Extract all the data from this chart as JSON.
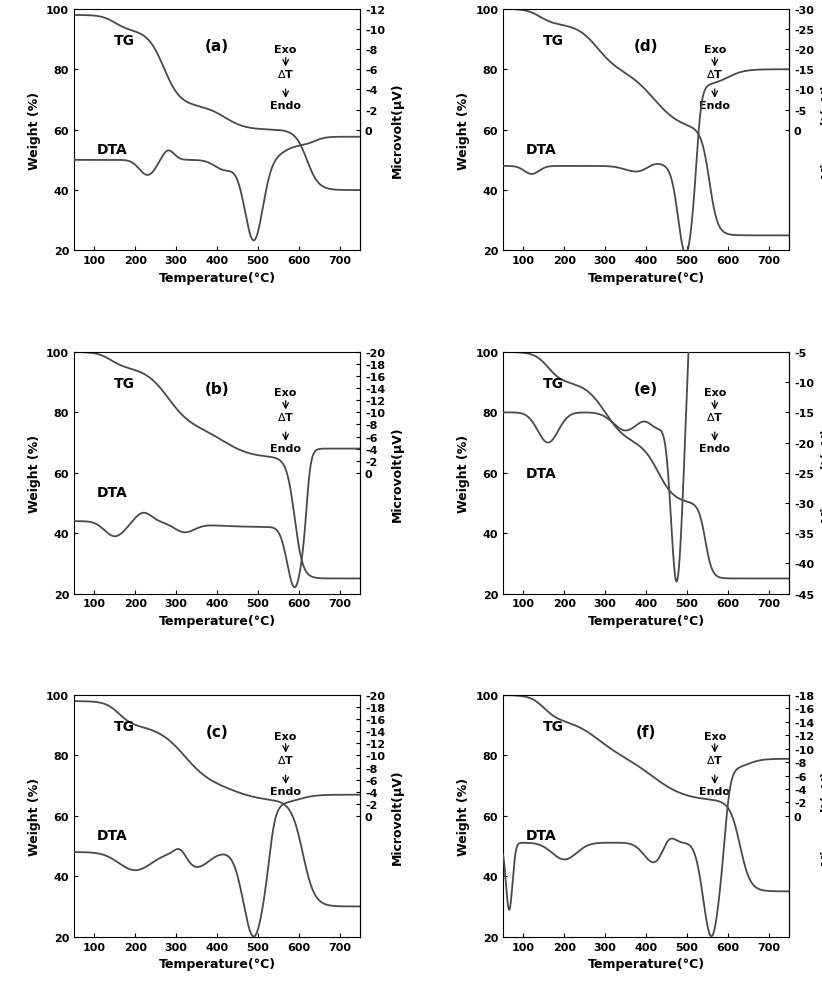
{
  "panels": [
    {
      "label": "(a)",
      "tg_ylim": [
        20,
        100
      ],
      "tg_yticks": [
        20,
        40,
        60,
        80,
        100
      ],
      "dta_ylim": [
        -2,
        12
      ],
      "dta_yticks": [
        0,
        -2,
        -4,
        -6,
        -8,
        -10,
        -12
      ],
      "dta_yticklabels": [
        "0",
        "-2",
        "-4",
        "-6",
        "-8",
        "-10",
        "-12"
      ],
      "dta_ylabel": "Microvolt(μV)",
      "xlabel": "Temperature(°C)",
      "xticks": [
        100,
        200,
        300,
        400,
        500,
        600,
        700
      ],
      "xlim": [
        50,
        750
      ],
      "row": 0,
      "col": 0
    },
    {
      "label": "(b)",
      "tg_ylim": [
        20,
        100
      ],
      "tg_yticks": [
        20,
        40,
        60,
        80,
        100
      ],
      "dta_ylim": [
        -2,
        20
      ],
      "dta_yticks": [
        0,
        -2,
        -4,
        -6,
        -8,
        -10,
        -12,
        -14,
        -16,
        -18,
        -20
      ],
      "dta_yticklabels": [
        "0",
        "-2",
        "-4",
        "-6",
        "-8",
        "-10",
        "-12",
        "-14",
        "-16",
        "-18",
        "-20"
      ],
      "dta_ylabel": "Microvolt(μV)",
      "xlabel": "Temperature(°C)",
      "xticks": [
        100,
        200,
        300,
        400,
        500,
        600,
        700
      ],
      "xlim": [
        50,
        750
      ],
      "row": 1,
      "col": 0
    },
    {
      "label": "(c)",
      "tg_ylim": [
        20,
        100
      ],
      "tg_yticks": [
        20,
        40,
        60,
        80,
        100
      ],
      "dta_ylim": [
        -2,
        20
      ],
      "dta_yticks": [
        0,
        -2,
        -4,
        -6,
        -8,
        -10,
        -12,
        -14,
        -16,
        -18,
        -20
      ],
      "dta_yticklabels": [
        "0",
        "-2",
        "-4",
        "-6",
        "-8",
        "-10",
        "-12",
        "-14",
        "-16",
        "-18",
        "-20"
      ],
      "dta_ylabel": "Microvolt(μV)",
      "xlabel": "Temperature(°C)",
      "xticks": [
        100,
        200,
        300,
        400,
        500,
        600,
        700
      ],
      "xlim": [
        50,
        750
      ],
      "row": 2,
      "col": 0
    },
    {
      "label": "(d)",
      "tg_ylim": [
        20,
        100
      ],
      "tg_yticks": [
        20,
        40,
        60,
        80,
        100
      ],
      "dta_ylim": [
        -5,
        30
      ],
      "dta_yticks": [
        0,
        -5,
        -10,
        -15,
        -20,
        -25,
        -30
      ],
      "dta_yticklabels": [
        "0",
        "-5",
        "-10",
        "-15",
        "-20",
        "-25",
        "-30"
      ],
      "dta_ylabel": "Microvolt(μV)",
      "xlabel": "Temperature(°C)",
      "xticks": [
        100,
        200,
        300,
        400,
        500,
        600,
        700
      ],
      "xlim": [
        50,
        750
      ],
      "row": 0,
      "col": 1
    },
    {
      "label": "(e)",
      "tg_ylim": [
        20,
        100
      ],
      "tg_yticks": [
        20,
        40,
        60,
        80,
        100
      ],
      "dta_ylim": [
        5,
        45
      ],
      "dta_yticks": [
        5,
        10,
        15,
        20,
        25,
        30,
        35,
        40,
        45
      ],
      "dta_yticklabels": [
        "-5",
        "-10",
        "-15",
        "-20",
        "-25",
        "-30",
        "-35",
        "-40",
        "-45"
      ],
      "dta_ylabel": "Microvolt(μV)",
      "xlabel": "Temperature(°C)",
      "xticks": [
        100,
        200,
        300,
        400,
        500,
        600,
        700
      ],
      "xlim": [
        50,
        750
      ],
      "row": 1,
      "col": 1
    },
    {
      "label": "(f)",
      "tg_ylim": [
        20,
        100
      ],
      "tg_yticks": [
        20,
        40,
        60,
        80,
        100
      ],
      "dta_ylim": [
        -2,
        18
      ],
      "dta_yticks": [
        0,
        -2,
        -4,
        -6,
        -8,
        -10,
        -12,
        -14,
        -16,
        -18
      ],
      "dta_yticklabels": [
        "0",
        "-2",
        "-4",
        "-6",
        "-8",
        "-10",
        "-12",
        "-14",
        "-16",
        "-18"
      ],
      "dta_ylabel": "Microvolt(μV)",
      "xlabel": "Temperature(°C)",
      "xticks": [
        100,
        200,
        300,
        400,
        500,
        600,
        700
      ],
      "xlim": [
        50,
        750
      ],
      "row": 2,
      "col": 1
    }
  ],
  "curve_color": "#4a4a4a",
  "linewidth": 1.3,
  "font_size": 9,
  "label_fontsize": 11,
  "tick_fontsize": 8
}
